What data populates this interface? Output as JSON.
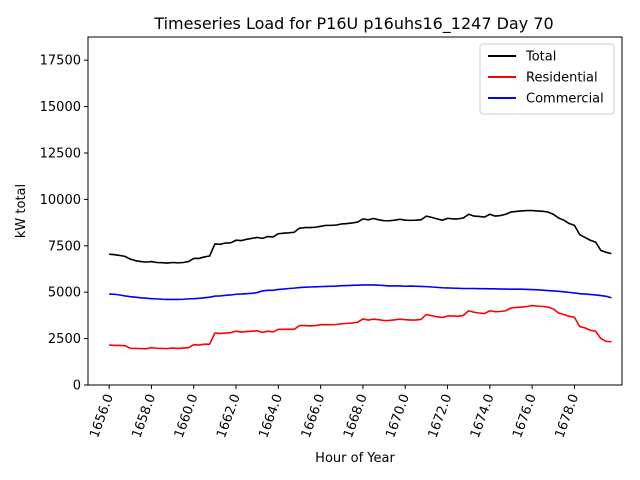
{
  "chart_data": {
    "type": "line",
    "title": "Timeseries Load for P16U p16uhs16_1247  Day 70",
    "xlabel": "Hour of Year",
    "ylabel": "kW total",
    "xlim": [
      1655.0,
      1680.25
    ],
    "ylim": [
      0,
      18750
    ],
    "xticks": [
      1656,
      1658,
      1660,
      1662,
      1664,
      1666,
      1668,
      1670,
      1672,
      1674,
      1676,
      1678
    ],
    "xtick_labels": [
      "1656.0",
      "1658.0",
      "1660.0",
      "1662.0",
      "1664.0",
      "1666.0",
      "1668.0",
      "1670.0",
      "1672.0",
      "1674.0",
      "1676.0",
      "1678.0"
    ],
    "yticks": [
      0,
      2500,
      5000,
      7500,
      10000,
      12500,
      15000,
      17500
    ],
    "ytick_labels": [
      "0",
      "2500",
      "5000",
      "7500",
      "10000",
      "12500",
      "15000",
      "17500"
    ],
    "legend_position": "top-right",
    "x": [
      1656.0,
      1656.25,
      1656.5,
      1656.75,
      1657.0,
      1657.25,
      1657.5,
      1657.75,
      1658.0,
      1658.25,
      1658.5,
      1658.75,
      1659.0,
      1659.25,
      1659.5,
      1659.75,
      1660.0,
      1660.25,
      1660.5,
      1660.75,
      1661.0,
      1661.25,
      1661.5,
      1661.75,
      1662.0,
      1662.25,
      1662.5,
      1662.75,
      1663.0,
      1663.25,
      1663.5,
      1663.75,
      1664.0,
      1664.25,
      1664.5,
      1664.75,
      1665.0,
      1665.25,
      1665.5,
      1665.75,
      1666.0,
      1666.25,
      1666.5,
      1666.75,
      1667.0,
      1667.25,
      1667.5,
      1667.75,
      1668.0,
      1668.25,
      1668.5,
      1668.75,
      1669.0,
      1669.25,
      1669.5,
      1669.75,
      1670.0,
      1670.25,
      1670.5,
      1670.75,
      1671.0,
      1671.25,
      1671.5,
      1671.75,
      1672.0,
      1672.25,
      1672.5,
      1672.75,
      1673.0,
      1673.25,
      1673.5,
      1673.75,
      1674.0,
      1674.25,
      1674.5,
      1674.75,
      1675.0,
      1675.25,
      1675.5,
      1675.75,
      1676.0,
      1676.25,
      1676.5,
      1676.75,
      1677.0,
      1677.25,
      1677.5,
      1677.75,
      1678.0,
      1678.25,
      1678.5,
      1678.75,
      1679.0,
      1679.25,
      1679.5,
      1679.75
    ],
    "series": [
      {
        "name": "Total",
        "color": "#000000",
        "values": [
          7050,
          7020,
          6980,
          6930,
          6780,
          6700,
          6650,
          6620,
          6650,
          6600,
          6590,
          6570,
          6600,
          6580,
          6600,
          6650,
          6820,
          6820,
          6900,
          6950,
          7600,
          7580,
          7650,
          7660,
          7800,
          7780,
          7850,
          7900,
          7950,
          7900,
          8000,
          7980,
          8150,
          8180,
          8200,
          8230,
          8450,
          8480,
          8480,
          8500,
          8550,
          8600,
          8600,
          8620,
          8680,
          8700,
          8730,
          8780,
          8950,
          8900,
          8970,
          8900,
          8850,
          8850,
          8880,
          8930,
          8880,
          8870,
          8880,
          8900,
          9100,
          9030,
          8950,
          8880,
          8980,
          8950,
          8950,
          9000,
          9200,
          9100,
          9080,
          9050,
          9200,
          9100,
          9130,
          9200,
          9320,
          9350,
          9380,
          9400,
          9400,
          9380,
          9360,
          9320,
          9200,
          9000,
          8880,
          8700,
          8600,
          8100,
          7950,
          7800,
          7700,
          7250,
          7150,
          7080
        ]
      },
      {
        "name": "Residential",
        "color": "#ff0000",
        "values": [
          2150,
          2130,
          2130,
          2120,
          1980,
          1970,
          1960,
          1950,
          2010,
          1980,
          1970,
          1960,
          1990,
          1970,
          1990,
          2010,
          2170,
          2150,
          2200,
          2200,
          2800,
          2780,
          2800,
          2820,
          2900,
          2850,
          2880,
          2900,
          2920,
          2830,
          2900,
          2860,
          3000,
          3000,
          3000,
          3000,
          3200,
          3200,
          3180,
          3200,
          3250,
          3250,
          3250,
          3260,
          3300,
          3320,
          3340,
          3380,
          3560,
          3500,
          3550,
          3520,
          3470,
          3480,
          3510,
          3550,
          3520,
          3500,
          3500,
          3540,
          3800,
          3730,
          3680,
          3640,
          3720,
          3720,
          3700,
          3750,
          4000,
          3920,
          3880,
          3850,
          4000,
          3950,
          3960,
          4000,
          4150,
          4180,
          4200,
          4230,
          4280,
          4250,
          4230,
          4200,
          4100,
          3880,
          3800,
          3700,
          3650,
          3150,
          3080,
          2950,
          2900,
          2500,
          2350,
          2330
        ]
      },
      {
        "name": "Commercial",
        "color": "#0000ff",
        "values": [
          4900,
          4890,
          4850,
          4800,
          4760,
          4730,
          4700,
          4680,
          4650,
          4640,
          4620,
          4610,
          4610,
          4610,
          4620,
          4640,
          4650,
          4670,
          4700,
          4730,
          4790,
          4800,
          4830,
          4850,
          4890,
          4900,
          4920,
          4940,
          4980,
          5070,
          5100,
          5100,
          5150,
          5170,
          5200,
          5220,
          5250,
          5270,
          5280,
          5290,
          5300,
          5310,
          5320,
          5330,
          5350,
          5360,
          5370,
          5380,
          5390,
          5390,
          5390,
          5380,
          5360,
          5340,
          5340,
          5340,
          5320,
          5330,
          5320,
          5310,
          5300,
          5280,
          5260,
          5240,
          5230,
          5220,
          5210,
          5200,
          5200,
          5200,
          5190,
          5190,
          5180,
          5180,
          5170,
          5170,
          5160,
          5160,
          5160,
          5150,
          5140,
          5130,
          5110,
          5090,
          5070,
          5050,
          5020,
          4990,
          4960,
          4920,
          4900,
          4880,
          4850,
          4820,
          4780,
          4700
        ]
      }
    ]
  }
}
